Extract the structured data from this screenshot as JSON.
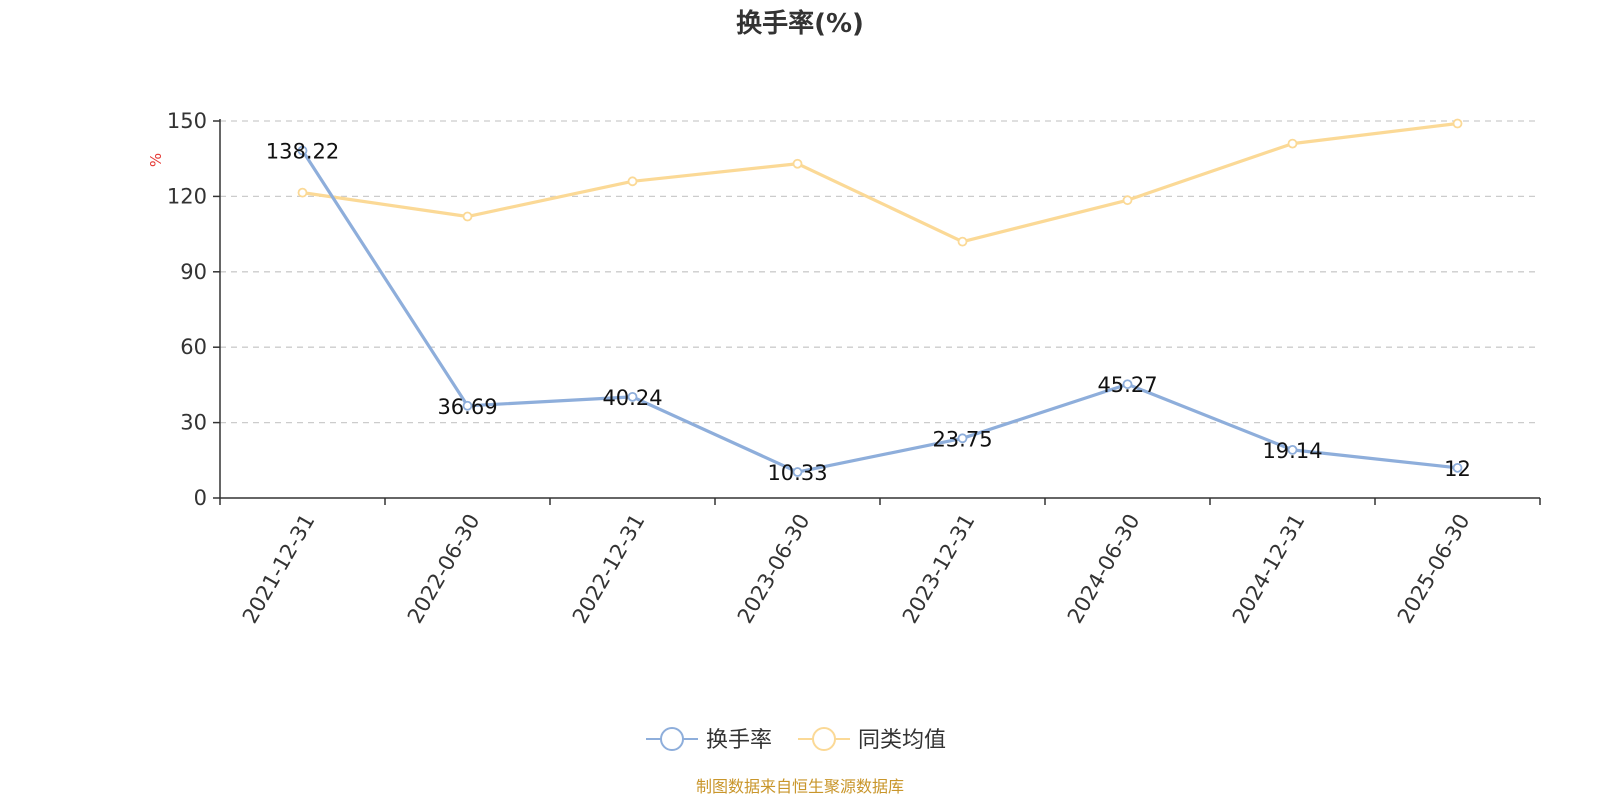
{
  "title": "换手率(%)",
  "source_note": "制图数据来自恒生聚源数据库",
  "chart_data": {
    "type": "line",
    "title": "换手率(%)",
    "ylabel": "%",
    "xlabel": "",
    "categories": [
      "2021-12-31",
      "2022-06-30",
      "2022-12-31",
      "2023-06-30",
      "2023-12-31",
      "2024-06-30",
      "2024-12-31",
      "2025-06-30"
    ],
    "ylim": [
      0,
      150
    ],
    "yticks": [
      0,
      30,
      60,
      90,
      120,
      150
    ],
    "grid": true,
    "legend_position": "bottom-center",
    "series": [
      {
        "name": "换手率",
        "color": "#8eaedb",
        "values": [
          138.22,
          36.69,
          40.24,
          10.33,
          23.75,
          45.27,
          19.14,
          12
        ],
        "labels": [
          "138.22",
          "36.69",
          "40.24",
          "10.33",
          "23.75",
          "45.27",
          "19.14",
          "12"
        ],
        "show_labels": true
      },
      {
        "name": "同类均值",
        "color": "#fbd996",
        "values": [
          121.5,
          112,
          126,
          133,
          102,
          118.5,
          141,
          149
        ],
        "show_labels": false
      }
    ]
  }
}
